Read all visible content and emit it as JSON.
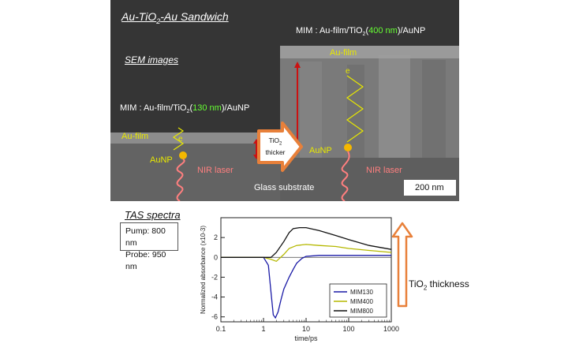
{
  "sem_panel": {
    "title": "Au-TiO",
    "title_sub": "2",
    "title_rest": "-Au Sandwich",
    "subtitle": "SEM images",
    "mim_left": {
      "prefix": "MIM : Au-film/TiO",
      "sub": "2",
      "thickness": "130 nm",
      "suffix": "/AuNP"
    },
    "mim_right": {
      "prefix": "MIM : Au-film/TiO",
      "sub": "2",
      "thickness": "400 nm",
      "suffix": "/AuNP"
    },
    "au_film_left": "Au-film",
    "au_film_right": "Au-film",
    "aunp_left": "AuNP",
    "aunp_right": "AuNP",
    "electron_left": "e",
    "electron_right": "e",
    "nir_left": "NIR laser",
    "nir_right": "NIR laser",
    "glass": "Glass substrate",
    "arrow_text_1": "TiO",
    "arrow_text_sub": "2",
    "arrow_text_2": "thicker",
    "scale_bar": "200 nm"
  },
  "tas": {
    "title": "TAS spectra",
    "pump": "Pump: 800 nm",
    "probe": "Probe: 950 nm",
    "thickness_label": "TiO",
    "thickness_sub": "2",
    "thickness_rest": " thickness"
  },
  "chart_data": {
    "type": "line",
    "xlabel": "time/ps",
    "ylabel": "Normalized absorbance (x10",
    "ylabel_sup": "-3",
    "ylabel_end": ")",
    "x_scale": "log",
    "xlim": [
      0.1,
      1000
    ],
    "ylim": [
      -6.5,
      4
    ],
    "x_ticks": [
      0.1,
      1,
      10,
      100,
      1000
    ],
    "x_tick_labels": [
      "0.1",
      "1",
      "10",
      "100",
      "1000"
    ],
    "y_ticks": [
      -6,
      -4,
      -2,
      0,
      2
    ],
    "y_tick_labels": [
      "-6",
      "-4",
      "-2",
      "0",
      "2"
    ],
    "legend_position": "bottom-right",
    "series": [
      {
        "name": "MIM130",
        "color": "#1a1aa6",
        "x": [
          0.1,
          0.5,
          1,
          1.3,
          1.5,
          1.7,
          1.9,
          2.2,
          2.6,
          3,
          4,
          5,
          6,
          8,
          10,
          20,
          50,
          100,
          1000
        ],
        "y": [
          0,
          0,
          0,
          -0.8,
          -3.5,
          -5.8,
          -6.1,
          -5.5,
          -4.2,
          -3.2,
          -2.0,
          -1.2,
          -0.6,
          -0.1,
          0.1,
          0.2,
          0.2,
          0.2,
          0.2
        ]
      },
      {
        "name": "MIM400",
        "color": "#b5b800",
        "x": [
          0.1,
          1,
          1.5,
          2,
          3,
          4,
          6,
          10,
          20,
          50,
          100,
          300,
          1000
        ],
        "y": [
          0,
          0,
          -0.2,
          -0.4,
          0.3,
          0.9,
          1.2,
          1.3,
          1.2,
          1.1,
          0.9,
          0.7,
          0.5
        ]
      },
      {
        "name": "MIM800",
        "color": "#111111",
        "x": [
          0.1,
          1,
          1.5,
          2,
          3,
          4,
          5,
          7,
          10,
          20,
          50,
          100,
          300,
          1000
        ],
        "y": [
          0,
          0,
          0,
          0.5,
          1.6,
          2.5,
          2.9,
          3.0,
          3.0,
          2.7,
          2.2,
          1.8,
          1.2,
          0.8
        ]
      }
    ]
  },
  "colors": {
    "sem_bg": "#3a3a3a",
    "yellow": "#e8e800",
    "green": "#66ff33",
    "red_arrow": "#cc1111",
    "orange_arrow": "#e8803a",
    "pink": "#ff7f7f"
  }
}
